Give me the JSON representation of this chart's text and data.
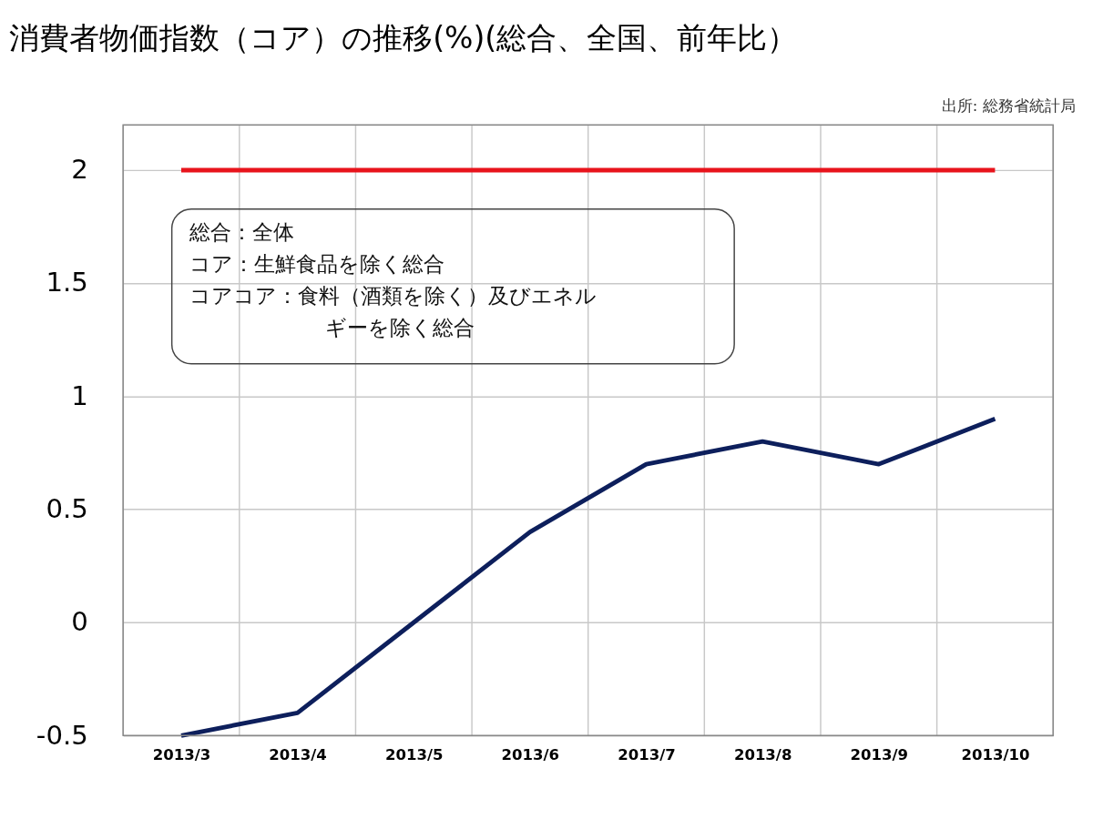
{
  "chart_data": {
    "type": "line",
    "title": "消費者物価指数（コア）の推移(%)(総合、全国、前年比）",
    "categories": [
      "2013/3",
      "2013/4",
      "2013/5",
      "2013/6",
      "2013/7",
      "2013/8",
      "2013/9",
      "2013/10"
    ],
    "series": [
      {
        "color": "#0d1f5c",
        "values": [
          -0.5,
          -0.4,
          0.0,
          0.4,
          0.7,
          0.8,
          0.7,
          0.9
        ]
      },
      {
        "color": "#e8141c",
        "values": [
          2,
          2,
          2,
          2,
          2,
          2,
          2,
          2
        ]
      }
    ],
    "ylim": [
      -0.5,
      2.2
    ],
    "yticks": [
      -0.5,
      0,
      0.5,
      1,
      1.5,
      2
    ],
    "grid": true,
    "marker": "none",
    "line_style": "solid",
    "annotations": [
      "総合：全体",
      "コア：生鮮食品を除く総合",
      "コアコア：食料（酒類を除く）及びエネルギーを除く総合",
      "出所: 総務省統計局"
    ]
  }
}
